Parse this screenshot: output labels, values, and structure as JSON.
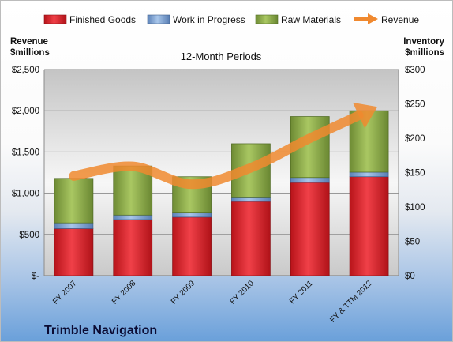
{
  "chart_data": {
    "type": "bar",
    "stacked": true,
    "subtitle": "12-Month Periods",
    "company": "Trimble Navigation",
    "categories": [
      "FY 2007",
      "FY 2008",
      "FY 2009",
      "FY 2010",
      "FY 2011",
      "FY & TTM 2012"
    ],
    "y_left": {
      "label_line1": "Revenue",
      "label_line2": "$millions",
      "min": 0,
      "max": 2500,
      "ticks": [
        0,
        500,
        1000,
        1500,
        2000,
        2500
      ],
      "tick_labels": [
        "$-",
        "$500",
        "$1,000",
        "$1,500",
        "$2,000",
        "$2,500"
      ]
    },
    "y_right": {
      "label_line1": "Inventory",
      "label_line2": "$millions",
      "min": 0,
      "max": 300,
      "ticks": [
        0,
        50,
        100,
        150,
        200,
        250,
        300
      ],
      "tick_labels": [
        "$0",
        "$50",
        "$100",
        "$150",
        "$200",
        "$250",
        "$300"
      ]
    },
    "series": [
      {
        "name": "Finished Goods",
        "axis": "left",
        "color": "#e41e26",
        "values": [
          570,
          680,
          710,
          900,
          1130,
          1200
        ]
      },
      {
        "name": "Work in Progress",
        "axis": "left",
        "color": "#7ea6d9",
        "values": [
          70,
          55,
          50,
          45,
          60,
          55
        ]
      },
      {
        "name": "Raw Materials",
        "axis": "left",
        "color": "#90b04a",
        "values": [
          540,
          595,
          440,
          655,
          740,
          745
        ]
      },
      {
        "name": "Revenue",
        "axis": "right",
        "type": "line",
        "color": "#f0892f",
        "values": [
          145,
          159,
          133,
          157,
          200,
          240
        ]
      }
    ],
    "grid": true,
    "legend": "top"
  }
}
